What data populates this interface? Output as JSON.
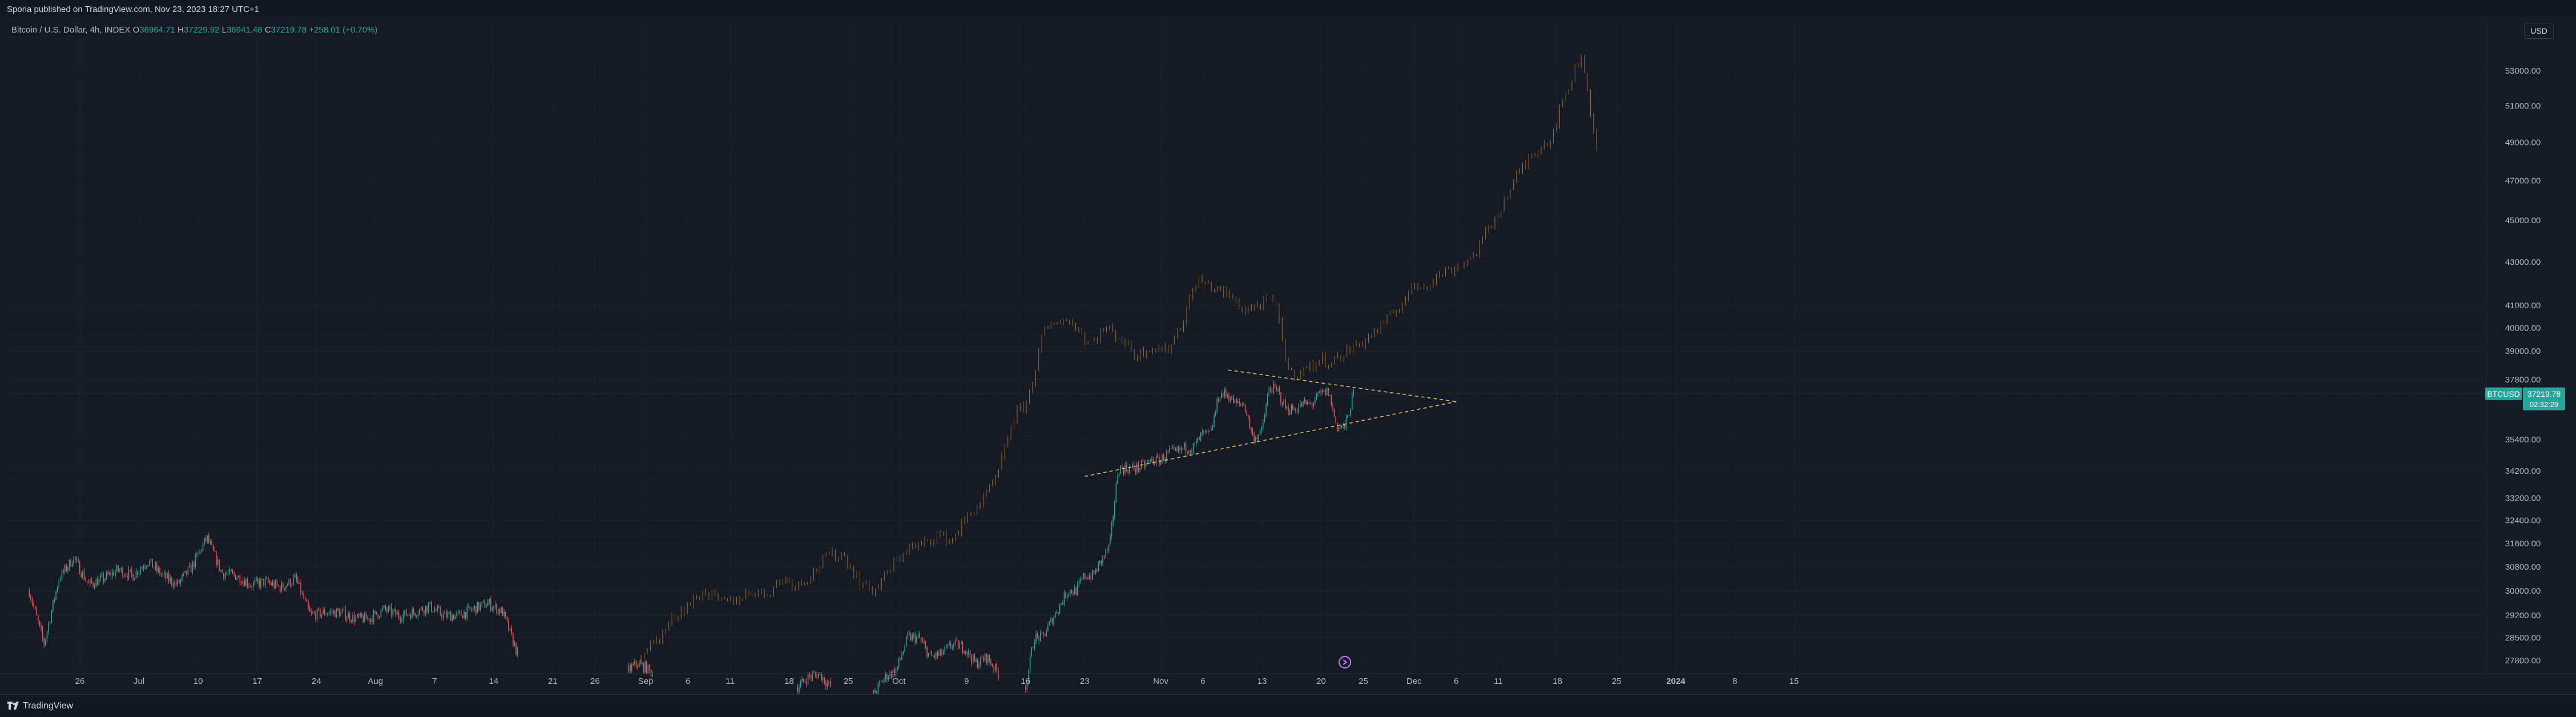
{
  "header": {
    "publish_text": "Sporia published on TradingView.com, Nov 23, 2023 18:27 UTC+1"
  },
  "legend": {
    "title": "Bitcoin / U.S. Dollar, 4h, INDEX",
    "o_label": "O",
    "o_value": "36964.71",
    "h_label": "H",
    "h_value": "37229.92",
    "l_label": "L",
    "l_value": "36941.48",
    "c_label": "C",
    "c_value": "37219.78",
    "change": "+258.01 (+0.70%)"
  },
  "toolbar": {
    "currency_label": "USD"
  },
  "footer": {
    "brand": "TradingView"
  },
  "colors": {
    "background": "#161a25",
    "up": "#26a69a",
    "down": "#ef5350",
    "projection": "#a0702c",
    "triangle": "#d4c060",
    "accent_label": "#26a69a"
  },
  "chart_data": {
    "type": "candlestick",
    "symbol_label": "BTCUSD",
    "last_price_label": "37219.78",
    "countdown_label": "02:32:29",
    "last_price": 37219.78,
    "y_axis_ticks": [
      "53000.00",
      "51000.00",
      "49000.00",
      "47000.00",
      "45000.00",
      "43000.00",
      "41000.00",
      "40000.00",
      "39000.00",
      "37800.00",
      "35400.00",
      "34200.00",
      "33200.00",
      "32400.00",
      "31600.00",
      "30800.00",
      "30000.00",
      "29200.00",
      "28500.00",
      "27800.00"
    ],
    "x_axis_ticks": [
      "26",
      "Jul",
      "10",
      "17",
      "24",
      "Aug",
      "7",
      "14",
      "21",
      "26",
      "Sep",
      "6",
      "11",
      "18",
      "25",
      "Oct",
      "9",
      "16",
      "23",
      "Nov",
      "6",
      "13",
      "20",
      "25",
      "Dec",
      "6",
      "11",
      "18",
      "25",
      "2024",
      "8",
      "15"
    ],
    "y_log_scale": true,
    "y_range": [
      27400,
      56000
    ],
    "segments": [
      {
        "name": "",
        "style": "candles",
        "start": "Jun 20",
        "end": "Aug 17",
        "path": [
          [
            30000,
            28300
          ],
          [
            30400,
            31100
          ],
          [
            30200,
            30400
          ],
          [
            30700,
            30500
          ],
          [
            31000,
            30500
          ],
          [
            30200,
            30800
          ],
          [
            31800,
            30600
          ],
          [
            30500,
            30200
          ],
          [
            30300,
            30100
          ],
          [
            30400,
            29200
          ],
          [
            29300,
            29300
          ],
          [
            29100,
            29100
          ],
          [
            29400,
            29200
          ],
          [
            29300,
            29500
          ],
          [
            29200,
            29200
          ],
          [
            29400,
            29600
          ],
          [
            29300,
            28000
          ]
        ]
      },
      {
        "name": "",
        "style": "candles",
        "start": "Aug 30",
        "end": "Sep 2",
        "path": [
          [
            27500,
            27700
          ],
          [
            27600,
            27400
          ]
        ]
      },
      {
        "name": "",
        "style": "candles",
        "start": "Sep 19",
        "end": "Sep 23",
        "path": [
          [
            27000,
            27300
          ],
          [
            27400,
            27000
          ]
        ]
      },
      {
        "name": "",
        "style": "candles",
        "start": "Sep 28",
        "end": "Oct 13",
        "path": [
          [
            26800,
            27300
          ],
          [
            27500,
            28500
          ],
          [
            28500,
            27900
          ],
          [
            28000,
            28300
          ],
          [
            28200,
            27700
          ],
          [
            27900,
            27400
          ]
        ]
      },
      {
        "name": "",
        "style": "candles",
        "start": "Oct 16",
        "end": "Nov 24",
        "path": [
          [
            27000,
            28500
          ],
          [
            28500,
            29000
          ],
          [
            29500,
            30000
          ],
          [
            30000,
            30500
          ],
          [
            30500,
            31000
          ],
          [
            31500,
            34300
          ],
          [
            34300,
            34300
          ],
          [
            34400,
            34600
          ],
          [
            34600,
            34900
          ],
          [
            34900,
            35100
          ],
          [
            35100,
            35600
          ],
          [
            35600,
            37200
          ],
          [
            37200,
            36800
          ],
          [
            36800,
            35500
          ],
          [
            35600,
            37500
          ],
          [
            37300,
            36600
          ],
          [
            36600,
            36800
          ],
          [
            36800,
            37200
          ],
          [
            37300,
            35900
          ],
          [
            35900,
            37219.78
          ]
        ]
      },
      {
        "name": "",
        "style": "projection",
        "start": "Aug 30",
        "end": "Dec 23",
        "path": [
          [
            27500,
            28100
          ],
          [
            28500,
            29200
          ],
          [
            29600,
            30000
          ],
          [
            29600,
            29700
          ],
          [
            30000,
            29900
          ],
          [
            30400,
            30200
          ],
          [
            30600,
            31200
          ],
          [
            31200,
            30300
          ],
          [
            30000,
            30700
          ],
          [
            31400,
            31500
          ],
          [
            31900,
            31700
          ],
          [
            32500,
            33100
          ],
          [
            34000,
            36200
          ],
          [
            37000,
            39800
          ],
          [
            40400,
            40200
          ],
          [
            39300,
            40000
          ],
          [
            39600,
            38800
          ],
          [
            39200,
            39000
          ],
          [
            40200,
            42200
          ],
          [
            41800,
            41500
          ],
          [
            40800,
            41000
          ],
          [
            41300,
            38000
          ],
          [
            38200,
            38600
          ],
          [
            38600,
            39100
          ],
          [
            39500,
            40100
          ],
          [
            40800,
            41800
          ],
          [
            42000,
            42500
          ],
          [
            42800,
            43300
          ],
          [
            44600,
            46000
          ],
          [
            47500,
            48600
          ],
          [
            49200,
            51700
          ],
          [
            54000,
            48700
          ]
        ]
      }
    ],
    "triangle": {
      "upper": [
        [
          "Nov 9",
          38200
        ],
        [
          "Dec 6",
          36900
        ]
      ],
      "lower": [
        [
          "Oct 23",
          34000
        ],
        [
          "Dec 6",
          36900
        ]
      ]
    }
  }
}
